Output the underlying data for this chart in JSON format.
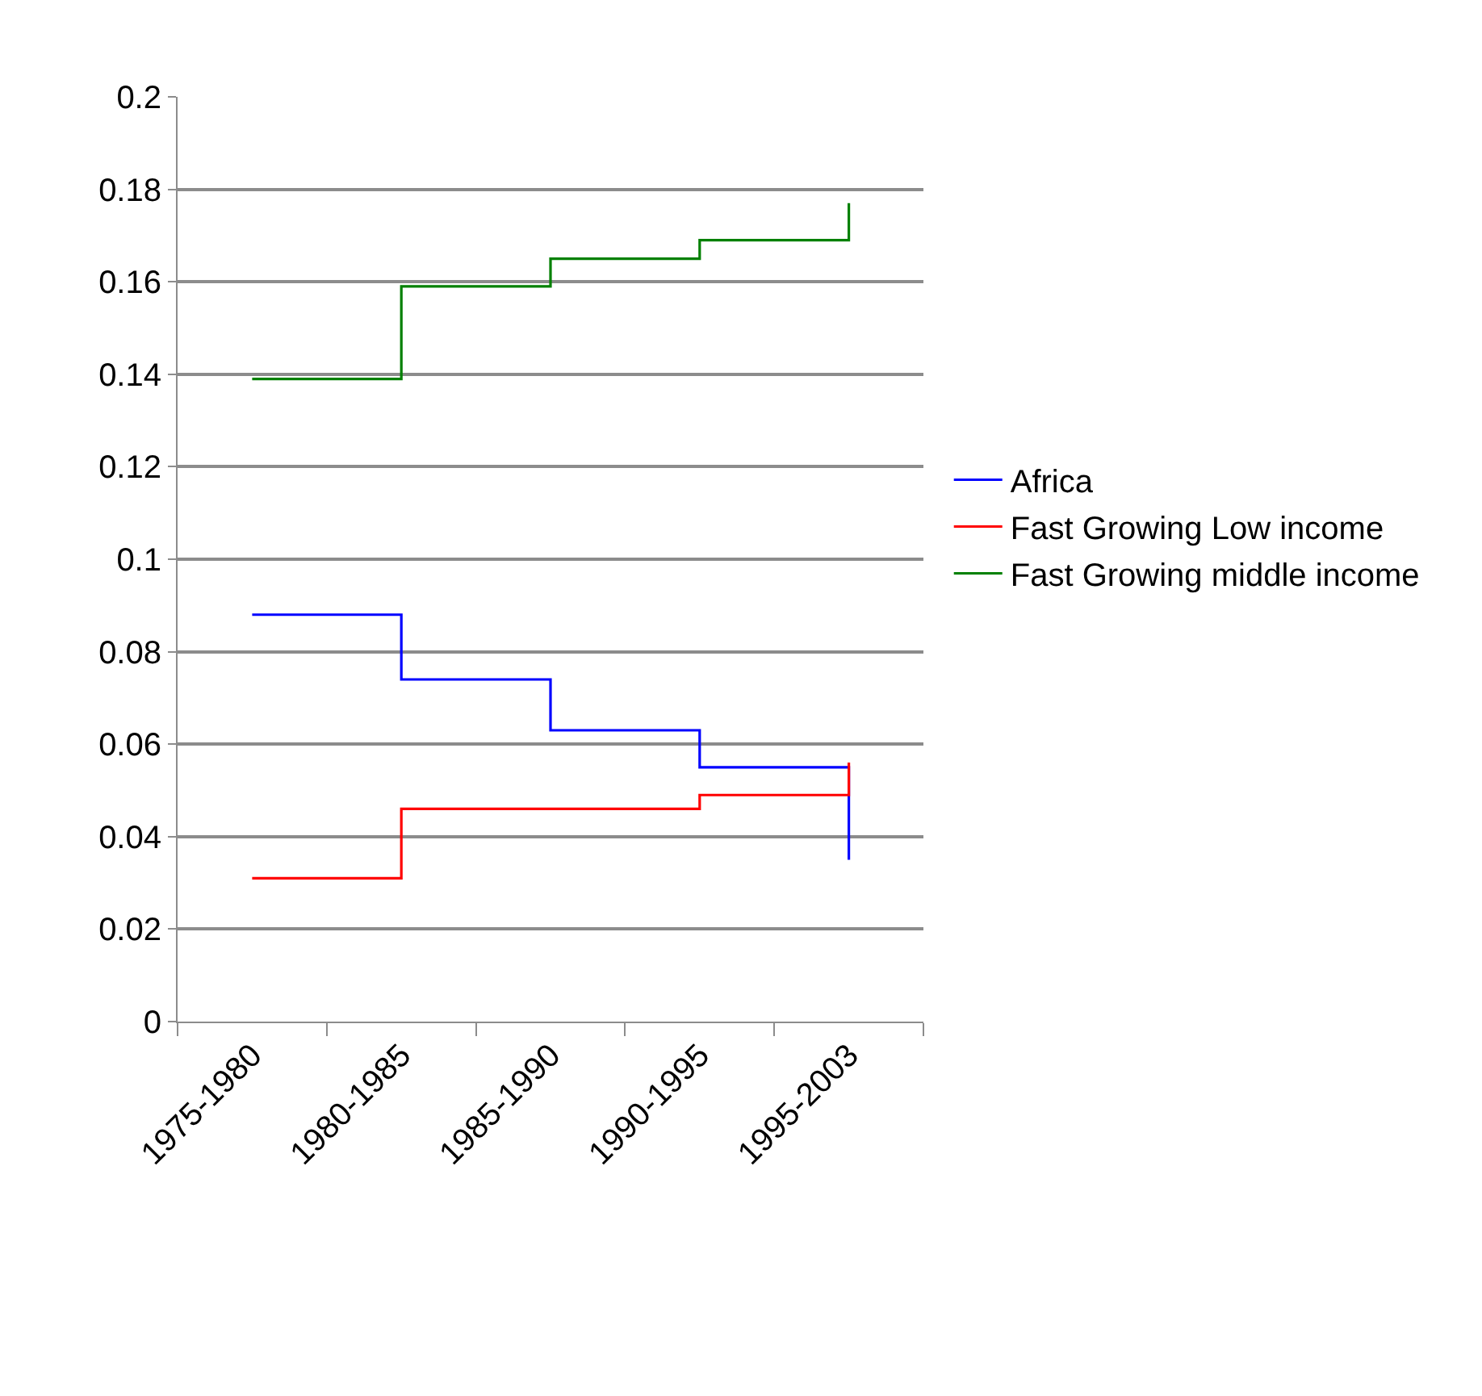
{
  "chart_data": {
    "type": "step",
    "categories": [
      "1975-1980",
      "1980-1985",
      "1985-1990",
      "1990-1995",
      "1995-2003"
    ],
    "series": [
      {
        "name": "Africa",
        "color": "#0000ff",
        "values": [
          0.088,
          0.074,
          0.063,
          0.055,
          0.035
        ]
      },
      {
        "name": "Fast Growing Low income",
        "color": "#ff0000",
        "values": [
          0.031,
          0.046,
          0.046,
          0.049,
          0.056
        ]
      },
      {
        "name": "Fast Growing middle income",
        "color": "#008000",
        "values": [
          0.139,
          0.159,
          0.165,
          0.169,
          0.177
        ]
      }
    ],
    "ylim": [
      0,
      0.2
    ],
    "yticks": [
      0,
      0.02,
      0.04,
      0.06,
      0.08,
      0.1,
      0.12,
      0.14,
      0.16,
      0.18,
      0.2
    ],
    "grid": "y",
    "legend": "right",
    "marker": "none",
    "line_style": "solid"
  }
}
